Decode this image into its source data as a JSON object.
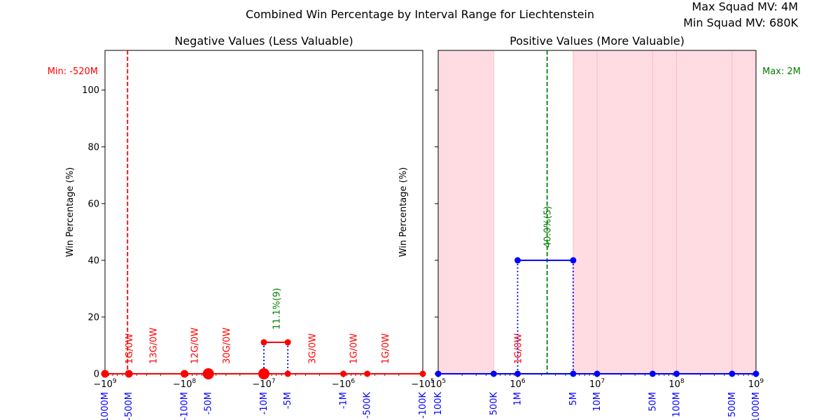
{
  "suptitle": "Combined Win Percentage by Interval Range for Liechtenstein",
  "corner_info": {
    "max_line": "Max Squad MV: 4M",
    "min_line": "Min Squad MV: 680K"
  },
  "colors": {
    "negative": "#ff0000",
    "positive": "#0000ff",
    "highlight": "#008000",
    "shade": "#ffc0cb",
    "tick_blue": "#0000ff"
  },
  "chart_data": [
    {
      "type": "line",
      "title": "Negative Values (Less Valuable)",
      "ylabel": "Win Percentage (%)",
      "xscale": "symlog-negative",
      "xlim": [
        -1000000000,
        -100000
      ],
      "ylim": [
        0,
        114
      ],
      "yticks": [
        "0",
        "20",
        "40",
        "60",
        "80",
        "100"
      ],
      "xtick_labels": [
        "−10^9",
        "−10^8",
        "−10^7",
        "−10^6",
        "−10^5"
      ],
      "category_ticks": [
        "-1000M",
        "-500M",
        "-100M",
        "-50M",
        "-10M",
        "-5M",
        "-1M",
        "-500K",
        "-100K"
      ],
      "points": [
        {
          "x": -1000000000,
          "y": 0
        },
        {
          "x": -500000000,
          "y": 0
        },
        {
          "x": -100000000,
          "y": 0
        },
        {
          "x": -50000000,
          "y": 0
        },
        {
          "x": -10000000,
          "y": 0
        },
        {
          "x": -10000000,
          "y": 11.1
        },
        {
          "x": -5000000,
          "y": 11.1
        },
        {
          "x": -5000000,
          "y": 0
        },
        {
          "x": -1000000,
          "y": 0
        },
        {
          "x": -500000,
          "y": 0
        },
        {
          "x": -100000,
          "y": 0
        }
      ],
      "interval_labels": [
        {
          "x": -500000000,
          "text": "1G/0W"
        },
        {
          "x": -250000000,
          "text": "13G/0W"
        },
        {
          "x": -75000000,
          "text": "12G/0W"
        },
        {
          "x": -30000000,
          "text": "30G/0W"
        },
        {
          "x": -2500000,
          "text": "3G/0W"
        },
        {
          "x": -750000,
          "text": "1G/0W"
        },
        {
          "x": -300000,
          "text": "1G/0W"
        }
      ],
      "highlight_label": {
        "x": -7000000,
        "y": 11.1,
        "text": "11.1%(9)"
      },
      "reference_line": {
        "x": -520000000,
        "label": "Min: -520M"
      }
    },
    {
      "type": "line",
      "title": "Positive Values (More Valuable)",
      "ylabel": "Win Percentage (%)",
      "xscale": "log",
      "xlim": [
        100000,
        1000000000
      ],
      "ylim": [
        0,
        114
      ],
      "xtick_labels": [
        "10^5",
        "10^6",
        "10^7",
        "10^8",
        "10^9"
      ],
      "category_ticks": [
        "100K",
        "500K",
        "1M",
        "5M",
        "10M",
        "50M",
        "100M",
        "500M",
        "1000M"
      ],
      "points": [
        {
          "x": 100000,
          "y": 0
        },
        {
          "x": 500000,
          "y": 0
        },
        {
          "x": 1000000,
          "y": 0
        },
        {
          "x": 1000000,
          "y": 40
        },
        {
          "x": 5000000,
          "y": 40
        },
        {
          "x": 5000000,
          "y": 0
        },
        {
          "x": 10000000,
          "y": 0
        },
        {
          "x": 50000000,
          "y": 0
        },
        {
          "x": 100000000,
          "y": 0
        },
        {
          "x": 500000000,
          "y": 0
        },
        {
          "x": 1000000000,
          "y": 0
        }
      ],
      "interval_labels": [
        {
          "x": 1000000,
          "text": "1G/0W"
        }
      ],
      "highlight_label": {
        "x": 2350000,
        "y": 40,
        "text": "40.0%(5)"
      },
      "reference_line": {
        "x": 2350000,
        "label": "Max: 2M"
      },
      "shaded_ranges": [
        [
          100000,
          500000
        ],
        [
          5000000,
          1000000000
        ]
      ]
    }
  ]
}
